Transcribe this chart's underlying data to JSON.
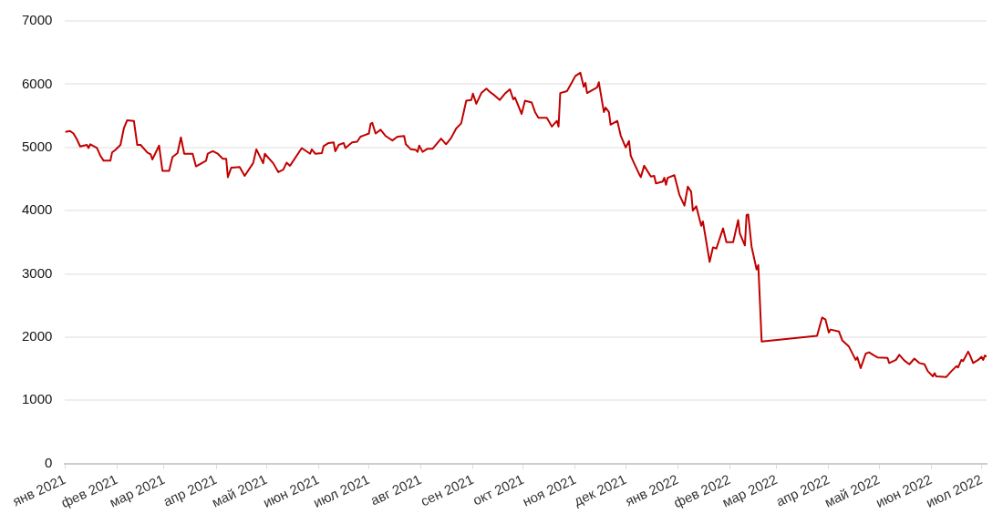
{
  "chart_data": {
    "type": "line",
    "x": [
      "2021-01-01",
      "2021-01-04",
      "2021-01-06",
      "2021-01-08",
      "2021-01-10",
      "2021-01-14",
      "2021-01-15",
      "2021-01-16",
      "2021-01-20",
      "2021-01-22",
      "2021-01-24",
      "2021-01-28",
      "2021-01-29",
      "2021-01-31",
      "2021-02-03",
      "2021-02-05",
      "2021-02-07",
      "2021-02-11",
      "2021-02-13",
      "2021-02-15",
      "2021-02-19",
      "2021-02-21",
      "2021-02-22",
      "2021-02-26",
      "2021-02-28",
      "2021-03-04",
      "2021-03-06",
      "2021-03-09",
      "2021-03-11",
      "2021-03-13",
      "2021-03-18",
      "2021-03-20",
      "2021-03-26",
      "2021-03-27",
      "2021-03-30",
      "2021-04-02",
      "2021-04-05",
      "2021-04-07",
      "2021-04-08",
      "2021-04-10",
      "2021-04-15",
      "2021-04-18",
      "2021-04-23",
      "2021-04-25",
      "2021-04-29",
      "2021-04-30",
      "2021-05-05",
      "2021-05-08",
      "2021-05-11",
      "2021-05-13",
      "2021-05-15",
      "2021-05-22",
      "2021-05-27",
      "2021-05-28",
      "2021-05-30",
      "2021-06-03",
      "2021-06-04",
      "2021-06-07",
      "2021-06-10",
      "2021-06-11",
      "2021-06-13",
      "2021-06-16",
      "2021-06-17",
      "2021-06-21",
      "2021-06-24",
      "2021-06-26",
      "2021-06-28",
      "2021-07-01",
      "2021-07-02",
      "2021-07-03",
      "2021-07-05",
      "2021-07-08",
      "2021-07-11",
      "2021-07-15",
      "2021-07-18",
      "2021-07-22",
      "2021-07-23",
      "2021-07-26",
      "2021-07-29",
      "2021-07-30",
      "2021-07-31",
      "2021-08-02",
      "2021-08-05",
      "2021-08-08",
      "2021-08-13",
      "2021-08-16",
      "2021-08-19",
      "2021-08-22",
      "2021-08-25",
      "2021-08-28",
      "2021-08-31",
      "2021-09-01",
      "2021-09-03",
      "2021-09-06",
      "2021-09-09",
      "2021-09-11",
      "2021-09-14",
      "2021-09-17",
      "2021-09-20",
      "2021-09-23",
      "2021-09-25",
      "2021-09-26",
      "2021-09-30",
      "2021-10-02",
      "2021-10-06",
      "2021-10-08",
      "2021-10-10",
      "2021-10-15",
      "2021-10-18",
      "2021-10-21",
      "2021-10-22",
      "2021-10-23",
      "2021-10-27",
      "2021-10-30",
      "2021-11-01",
      "2021-11-04",
      "2021-11-06",
      "2021-11-07",
      "2021-11-08",
      "2021-11-14",
      "2021-11-15",
      "2021-11-18",
      "2021-11-19",
      "2021-11-21",
      "2021-11-22",
      "2021-11-26",
      "2021-11-28",
      "2021-12-01",
      "2021-12-03",
      "2021-12-04",
      "2021-12-06",
      "2021-12-09",
      "2021-12-10",
      "2021-12-12",
      "2021-12-16",
      "2021-12-18",
      "2021-12-19",
      "2021-12-23",
      "2021-12-24",
      "2021-12-25",
      "2021-12-26",
      "2021-12-30",
      "2022-01-02",
      "2022-01-05",
      "2022-01-07",
      "2022-01-09",
      "2022-01-10",
      "2022-01-12",
      "2022-01-15",
      "2022-01-16",
      "2022-01-20",
      "2022-01-22",
      "2022-01-24",
      "2022-01-28",
      "2022-01-30",
      "2022-02-03",
      "2022-02-06",
      "2022-02-07",
      "2022-02-10",
      "2022-02-11",
      "2022-02-12",
      "2022-02-14",
      "2022-02-17",
      "2022-02-18",
      "2022-02-20",
      "2022-03-25",
      "2022-03-28",
      "2022-03-30",
      "2022-04-01",
      "2022-04-02",
      "2022-04-07",
      "2022-04-09",
      "2022-04-13",
      "2022-04-17",
      "2022-04-18",
      "2022-04-20",
      "2022-04-23",
      "2022-04-25",
      "2022-04-28",
      "2022-04-30",
      "2022-05-06",
      "2022-05-07",
      "2022-05-11",
      "2022-05-13",
      "2022-05-16",
      "2022-05-19",
      "2022-05-22",
      "2022-05-25",
      "2022-05-28",
      "2022-05-30",
      "2022-06-02",
      "2022-06-03",
      "2022-06-04",
      "2022-06-10",
      "2022-06-13",
      "2022-06-16",
      "2022-06-17",
      "2022-06-19",
      "2022-06-20",
      "2022-06-23",
      "2022-06-24",
      "2022-06-26",
      "2022-06-29",
      "2022-07-01",
      "2022-07-02",
      "2022-07-03",
      "2022-07-04"
    ],
    "series": [
      {
        "color": "#c00000",
        "values": [
          5245,
          5260,
          5220,
          5130,
          5015,
          5040,
          4990,
          5050,
          4990,
          4870,
          4790,
          4790,
          4920,
          4960,
          5040,
          5300,
          5430,
          5420,
          5040,
          5040,
          4920,
          4890,
          4810,
          5030,
          4630,
          4630,
          4850,
          4910,
          5160,
          4900,
          4900,
          4700,
          4790,
          4900,
          4940,
          4900,
          4820,
          4820,
          4530,
          4680,
          4690,
          4550,
          4750,
          4970,
          4750,
          4900,
          4750,
          4610,
          4650,
          4760,
          4710,
          4990,
          4900,
          4970,
          4900,
          4910,
          5020,
          5070,
          5080,
          4940,
          5040,
          5070,
          4990,
          5080,
          5090,
          5170,
          5190,
          5220,
          5370,
          5390,
          5220,
          5280,
          5180,
          5110,
          5170,
          5180,
          5050,
          4970,
          4960,
          4930,
          5030,
          4930,
          4980,
          4980,
          5140,
          5050,
          5150,
          5300,
          5380,
          5740,
          5750,
          5850,
          5690,
          5860,
          5930,
          5880,
          5820,
          5750,
          5850,
          5920,
          5760,
          5790,
          5530,
          5740,
          5710,
          5560,
          5470,
          5470,
          5330,
          5420,
          5330,
          5860,
          5890,
          6030,
          6130,
          6180,
          5960,
          6020,
          5860,
          5950,
          6030,
          5560,
          5630,
          5560,
          5360,
          5420,
          5190,
          5000,
          5100,
          4870,
          4750,
          4580,
          4530,
          4710,
          4540,
          4550,
          4430,
          4460,
          4520,
          4410,
          4520,
          4560,
          4250,
          4080,
          4380,
          4300,
          4000,
          4070,
          3760,
          3830,
          3190,
          3420,
          3400,
          3720,
          3500,
          3500,
          3850,
          3640,
          3450,
          3930,
          3940,
          3430,
          3070,
          3140,
          1930,
          2020,
          2310,
          2280,
          2070,
          2120,
          2090,
          1950,
          1850,
          1640,
          1680,
          1510,
          1740,
          1760,
          1710,
          1680,
          1670,
          1590,
          1640,
          1720,
          1630,
          1570,
          1660,
          1590,
          1570,
          1460,
          1380,
          1430,
          1380,
          1370,
          1460,
          1540,
          1520,
          1640,
          1620,
          1770,
          1720,
          1590,
          1640,
          1690,
          1640,
          1710,
          1690
        ]
      }
    ],
    "xlim": [
      "2021-01-01",
      "2022-07-04"
    ],
    "xticks": [
      {
        "value": "2021-01-01",
        "label": "янв 2021"
      },
      {
        "value": "2021-02-01",
        "label": "фев 2021"
      },
      {
        "value": "2021-03-01",
        "label": "мар 2021"
      },
      {
        "value": "2021-04-01",
        "label": "апр 2021"
      },
      {
        "value": "2021-05-01",
        "label": "май 2021"
      },
      {
        "value": "2021-06-01",
        "label": "июн 2021"
      },
      {
        "value": "2021-07-01",
        "label": "июл 2021"
      },
      {
        "value": "2021-08-01",
        "label": "авг 2021"
      },
      {
        "value": "2021-09-01",
        "label": "сен 2021"
      },
      {
        "value": "2021-10-01",
        "label": "окт 2021"
      },
      {
        "value": "2021-11-01",
        "label": "ноя 2021"
      },
      {
        "value": "2021-12-01",
        "label": "дек 2021"
      },
      {
        "value": "2022-01-01",
        "label": "янв 2022"
      },
      {
        "value": "2022-02-01",
        "label": "фев 2022"
      },
      {
        "value": "2022-03-01",
        "label": "мар 2022"
      },
      {
        "value": "2022-04-01",
        "label": "апр 2022"
      },
      {
        "value": "2022-05-01",
        "label": "май 2022"
      },
      {
        "value": "2022-06-01",
        "label": "июн 2022"
      },
      {
        "value": "2022-07-01",
        "label": "июл 2022"
      }
    ],
    "ylim": [
      0,
      7000
    ],
    "yticks": [
      0,
      1000,
      2000,
      3000,
      4000,
      5000,
      6000,
      7000
    ],
    "grid": "y",
    "legend": false,
    "marker": "none",
    "line_style": "solid"
  }
}
